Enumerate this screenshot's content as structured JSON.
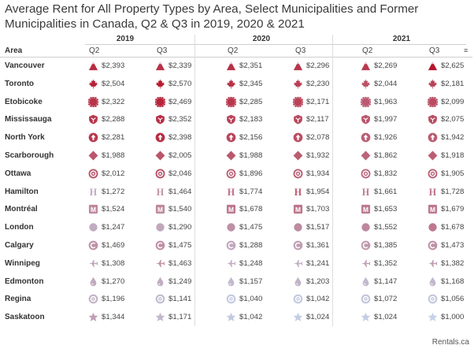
{
  "title": "Average Rent for All Property Types by Area, Select Municipalities and Former Municipalities in Canada, Q2 & Q3 in 2019, 2020 & 2021",
  "area_header": "Area",
  "filter_icon": "filter-icon",
  "footer": "Rentals.ca",
  "years": [
    "2019",
    "2020",
    "2021"
  ],
  "quarters": [
    "Q2",
    "Q3"
  ],
  "chart_data": {
    "type": "table",
    "title": "Average Rent for All Property Types by Area, Select Municipalities and Former Municipalities in Canada, Q2 & Q3 in 2019, 2020 & 2021",
    "columns": [
      "2019 Q2",
      "2019 Q3",
      "2020 Q2",
      "2020 Q3",
      "2021 Q2",
      "2021 Q3"
    ],
    "color_scale": {
      "low": "#c4d3e8",
      "high": "#b5152b"
    },
    "rows": [
      {
        "area": "Vancouver",
        "icon": "mountain",
        "values": [
          2393,
          2339,
          2351,
          2296,
          2269,
          2625
        ],
        "labels": [
          "$2,393",
          "$2,339",
          "$2,351",
          "$2,296",
          "$2,269",
          "$2,625"
        ]
      },
      {
        "area": "Toronto",
        "icon": "maple-leaf",
        "values": [
          2504,
          2570,
          2345,
          2230,
          2044,
          2181
        ],
        "labels": [
          "$2,504",
          "$2,570",
          "$2,345",
          "$2,230",
          "$2,044",
          "$2,181"
        ]
      },
      {
        "area": "Etobicoke",
        "icon": "sun",
        "values": [
          2322,
          2469,
          2285,
          2171,
          1963,
          2099
        ],
        "labels": [
          "$2,322",
          "$2,469",
          "$2,285",
          "$2,171",
          "$1,963",
          "$2,099"
        ]
      },
      {
        "area": "Mississauga",
        "icon": "shield",
        "values": [
          2288,
          2352,
          2183,
          2117,
          1997,
          2075
        ],
        "labels": [
          "$2,288",
          "$2,352",
          "$2,183",
          "$2,117",
          "$1,997",
          "$2,075"
        ]
      },
      {
        "area": "North York",
        "icon": "arrow-up-circle",
        "values": [
          2281,
          2398,
          2156,
          2078,
          1926,
          1942
        ],
        "labels": [
          "$2,281",
          "$2,398",
          "$2,156",
          "$2,078",
          "$1,926",
          "$1,942"
        ]
      },
      {
        "area": "Scarborough",
        "icon": "diamond",
        "values": [
          1988,
          2005,
          1988,
          1932,
          1862,
          1918
        ],
        "labels": [
          "$1,988",
          "$2,005",
          "$1,988",
          "$1,932",
          "$1,862",
          "$1,918"
        ]
      },
      {
        "area": "Ottawa",
        "icon": "target",
        "values": [
          2012,
          2046,
          1896,
          1934,
          1832,
          1905
        ],
        "labels": [
          "$2,012",
          "$2,046",
          "$1,896",
          "$1,934",
          "$1,832",
          "$1,905"
        ]
      },
      {
        "area": "Hamilton",
        "icon": "letter-h",
        "values": [
          1272,
          1464,
          1774,
          1954,
          1661,
          1728
        ],
        "labels": [
          "$1,272",
          "$1,464",
          "$1,774",
          "$1,954",
          "$1,661",
          "$1,728"
        ]
      },
      {
        "area": "Montréal",
        "icon": "letter-m-square",
        "values": [
          1524,
          1540,
          1678,
          1703,
          1653,
          1679
        ],
        "labels": [
          "$1,524",
          "$1,540",
          "$1,678",
          "$1,703",
          "$1,653",
          "$1,679"
        ]
      },
      {
        "area": "London",
        "icon": "dot",
        "values": [
          1247,
          1290,
          1475,
          1517,
          1552,
          1678
        ],
        "labels": [
          "$1,247",
          "$1,290",
          "$1,475",
          "$1,517",
          "$1,552",
          "$1,678"
        ]
      },
      {
        "area": "Calgary",
        "icon": "letter-c-circle",
        "values": [
          1469,
          1475,
          1288,
          1361,
          1385,
          1473
        ],
        "labels": [
          "$1,469",
          "$1,475",
          "$1,288",
          "$1,361",
          "$1,385",
          "$1,473"
        ]
      },
      {
        "area": "Winnipeg",
        "icon": "plane",
        "values": [
          1308,
          1463,
          1248,
          1241,
          1352,
          1382
        ],
        "labels": [
          "$1,308",
          "$1,463",
          "$1,248",
          "$1,241",
          "$1,352",
          "$1,382"
        ]
      },
      {
        "area": "Edmonton",
        "icon": "drop",
        "values": [
          1270,
          1249,
          1157,
          1203,
          1147,
          1168
        ],
        "labels": [
          "$1,270",
          "$1,249",
          "$1,157",
          "$1,203",
          "$1,147",
          "$1,168"
        ]
      },
      {
        "area": "Regina",
        "icon": "letter-b-circle",
        "values": [
          1196,
          1141,
          1040,
          1042,
          1072,
          1056
        ],
        "labels": [
          "$1,196",
          "$1,141",
          "$1,040",
          "$1,042",
          "$1,072",
          "$1,056"
        ]
      },
      {
        "area": "Saskatoon",
        "icon": "star",
        "values": [
          1344,
          1171,
          1042,
          1024,
          1024,
          1000
        ],
        "labels": [
          "$1,344",
          "$1,171",
          "$1,042",
          "$1,024",
          "$1,024",
          "$1,000"
        ]
      }
    ]
  }
}
